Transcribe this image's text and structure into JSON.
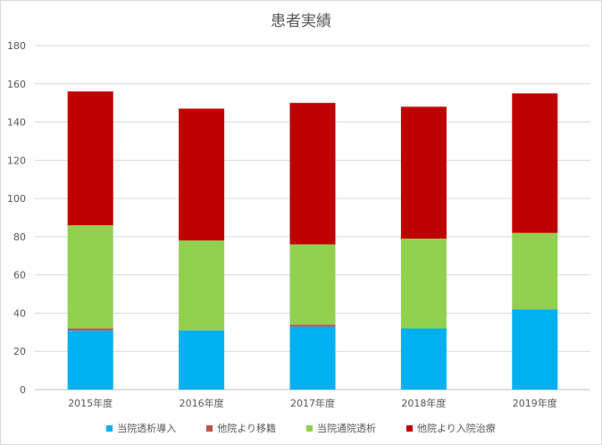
{
  "chart_data": {
    "type": "bar",
    "stacked": true,
    "title": "患者実績",
    "xlabel": "",
    "ylabel": "",
    "categories": [
      "2015年度",
      "2016年度",
      "2017年度",
      "2018年度",
      "2019年度"
    ],
    "series": [
      {
        "name": "当院透析導入",
        "color": "#00B0F0",
        "values": [
          31,
          31,
          33,
          32,
          42
        ]
      },
      {
        "name": "他院より移籍",
        "color": "#C0504D",
        "values": [
          1,
          0,
          1,
          0,
          0
        ]
      },
      {
        "name": "当院通院透析",
        "color": "#92D050",
        "values": [
          54,
          47,
          42,
          47,
          40
        ]
      },
      {
        "name": "他院より入院治療",
        "color": "#C00000",
        "values": [
          70,
          69,
          74,
          69,
          73
        ]
      }
    ],
    "ylim": [
      0,
      180
    ],
    "yticks": [
      0,
      20,
      40,
      60,
      80,
      100,
      120,
      140,
      160,
      180
    ],
    "grid": true,
    "legend_position": "bottom"
  }
}
